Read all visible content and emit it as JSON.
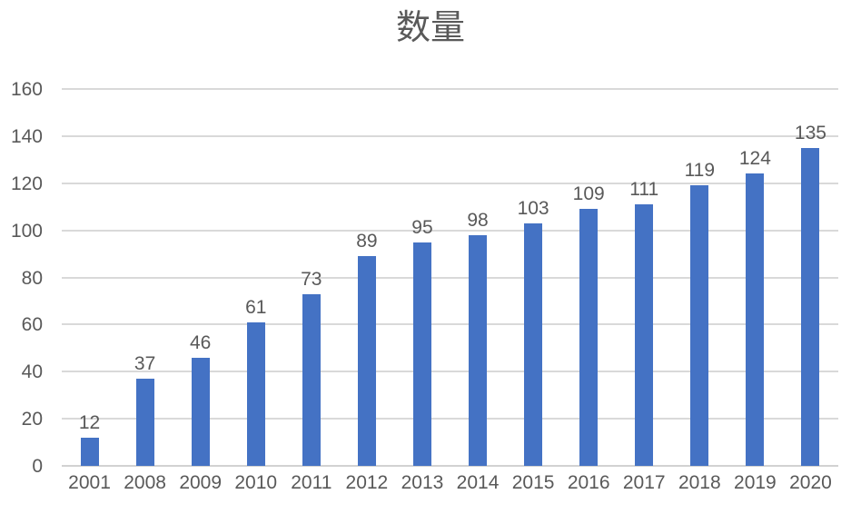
{
  "chart_data": {
    "type": "bar",
    "title": "数量",
    "categories": [
      "2001",
      "2008",
      "2009",
      "2010",
      "2011",
      "2012",
      "2013",
      "2014",
      "2015",
      "2016",
      "2017",
      "2018",
      "2019",
      "2020"
    ],
    "values": [
      12,
      37,
      46,
      61,
      73,
      89,
      95,
      98,
      103,
      109,
      111,
      119,
      124,
      135
    ],
    "xlabel": "",
    "ylabel": "",
    "ylim": [
      0,
      160
    ],
    "yticks": [
      0,
      20,
      40,
      60,
      80,
      100,
      120,
      140,
      160
    ],
    "grid": true,
    "legend": "none",
    "data_labels": true,
    "colors": {
      "bar": "#4472C4",
      "text": "#595959",
      "gridline": "#D9D9D9",
      "axis_line": "#D2D2D2",
      "background": "#FFFFFF"
    }
  }
}
